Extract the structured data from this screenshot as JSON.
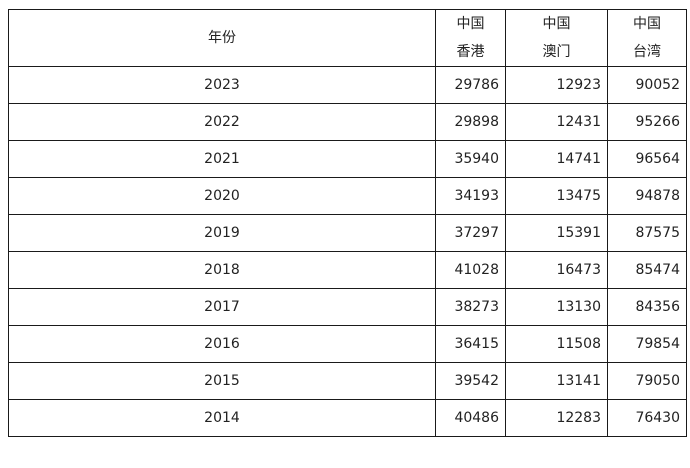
{
  "table": {
    "headers": {
      "year": "年份",
      "hk": [
        "中国",
        "香港"
      ],
      "mo": [
        "中国",
        "澳门"
      ],
      "tw": [
        "中国",
        "台湾"
      ]
    },
    "rows": [
      {
        "year": "2023",
        "hk": "29786",
        "mo": "12923",
        "tw": "90052"
      },
      {
        "year": "2022",
        "hk": "29898",
        "mo": "12431",
        "tw": "95266"
      },
      {
        "year": "2021",
        "hk": "35940",
        "mo": "14741",
        "tw": "96564"
      },
      {
        "year": "2020",
        "hk": "34193",
        "mo": "13475",
        "tw": "94878"
      },
      {
        "year": "2019",
        "hk": "37297",
        "mo": "15391",
        "tw": "87575"
      },
      {
        "year": "2018",
        "hk": "41028",
        "mo": "16473",
        "tw": "85474"
      },
      {
        "year": "2017",
        "hk": "38273",
        "mo": "13130",
        "tw": "84356"
      },
      {
        "year": "2016",
        "hk": "36415",
        "mo": "11508",
        "tw": "79854"
      },
      {
        "year": "2015",
        "hk": "39542",
        "mo": "13141",
        "tw": "79050"
      },
      {
        "year": "2014",
        "hk": "40486",
        "mo": "12283",
        "tw": "76430"
      }
    ]
  }
}
